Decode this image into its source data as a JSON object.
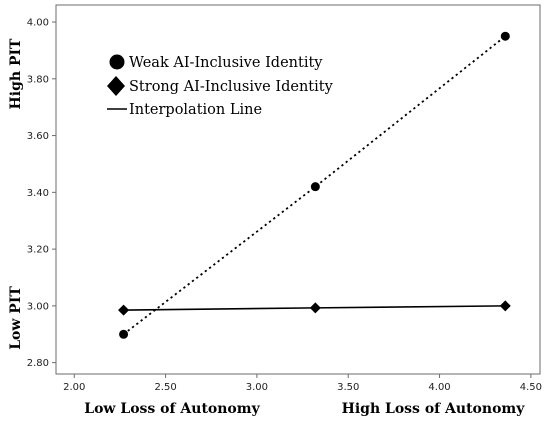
{
  "chart_data": {
    "type": "scatter",
    "xlim": [
      1.9,
      4.55
    ],
    "ylim": [
      2.76,
      4.06
    ],
    "x_ticks": [
      "2.00",
      "2.50",
      "3.00",
      "3.50",
      "4.00",
      "4.50"
    ],
    "y_ticks": [
      "2.80",
      "3.00",
      "3.20",
      "3.40",
      "3.60",
      "3.80",
      "4.00"
    ],
    "grid": false,
    "legend_position": "top-left",
    "series": [
      {
        "name": "Weak AI-Inclusive Identity",
        "marker": "circle",
        "line": "dotted",
        "x": [
          2.27,
          3.32,
          4.36
        ],
        "y": [
          2.9,
          3.42,
          3.95
        ]
      },
      {
        "name": "Strong AI-Inclusive Identity",
        "marker": "diamond",
        "line": "solid",
        "x": [
          2.27,
          3.32,
          4.36
        ],
        "y": [
          2.985,
          2.993,
          3.0
        ]
      }
    ],
    "legend_line_label": "Interpolation Line",
    "x_label_low": "Low Loss of Autonomy",
    "x_label_high": "High Loss of Autonomy",
    "y_label_low": "Low PIT",
    "y_label_high": "High PIT"
  }
}
